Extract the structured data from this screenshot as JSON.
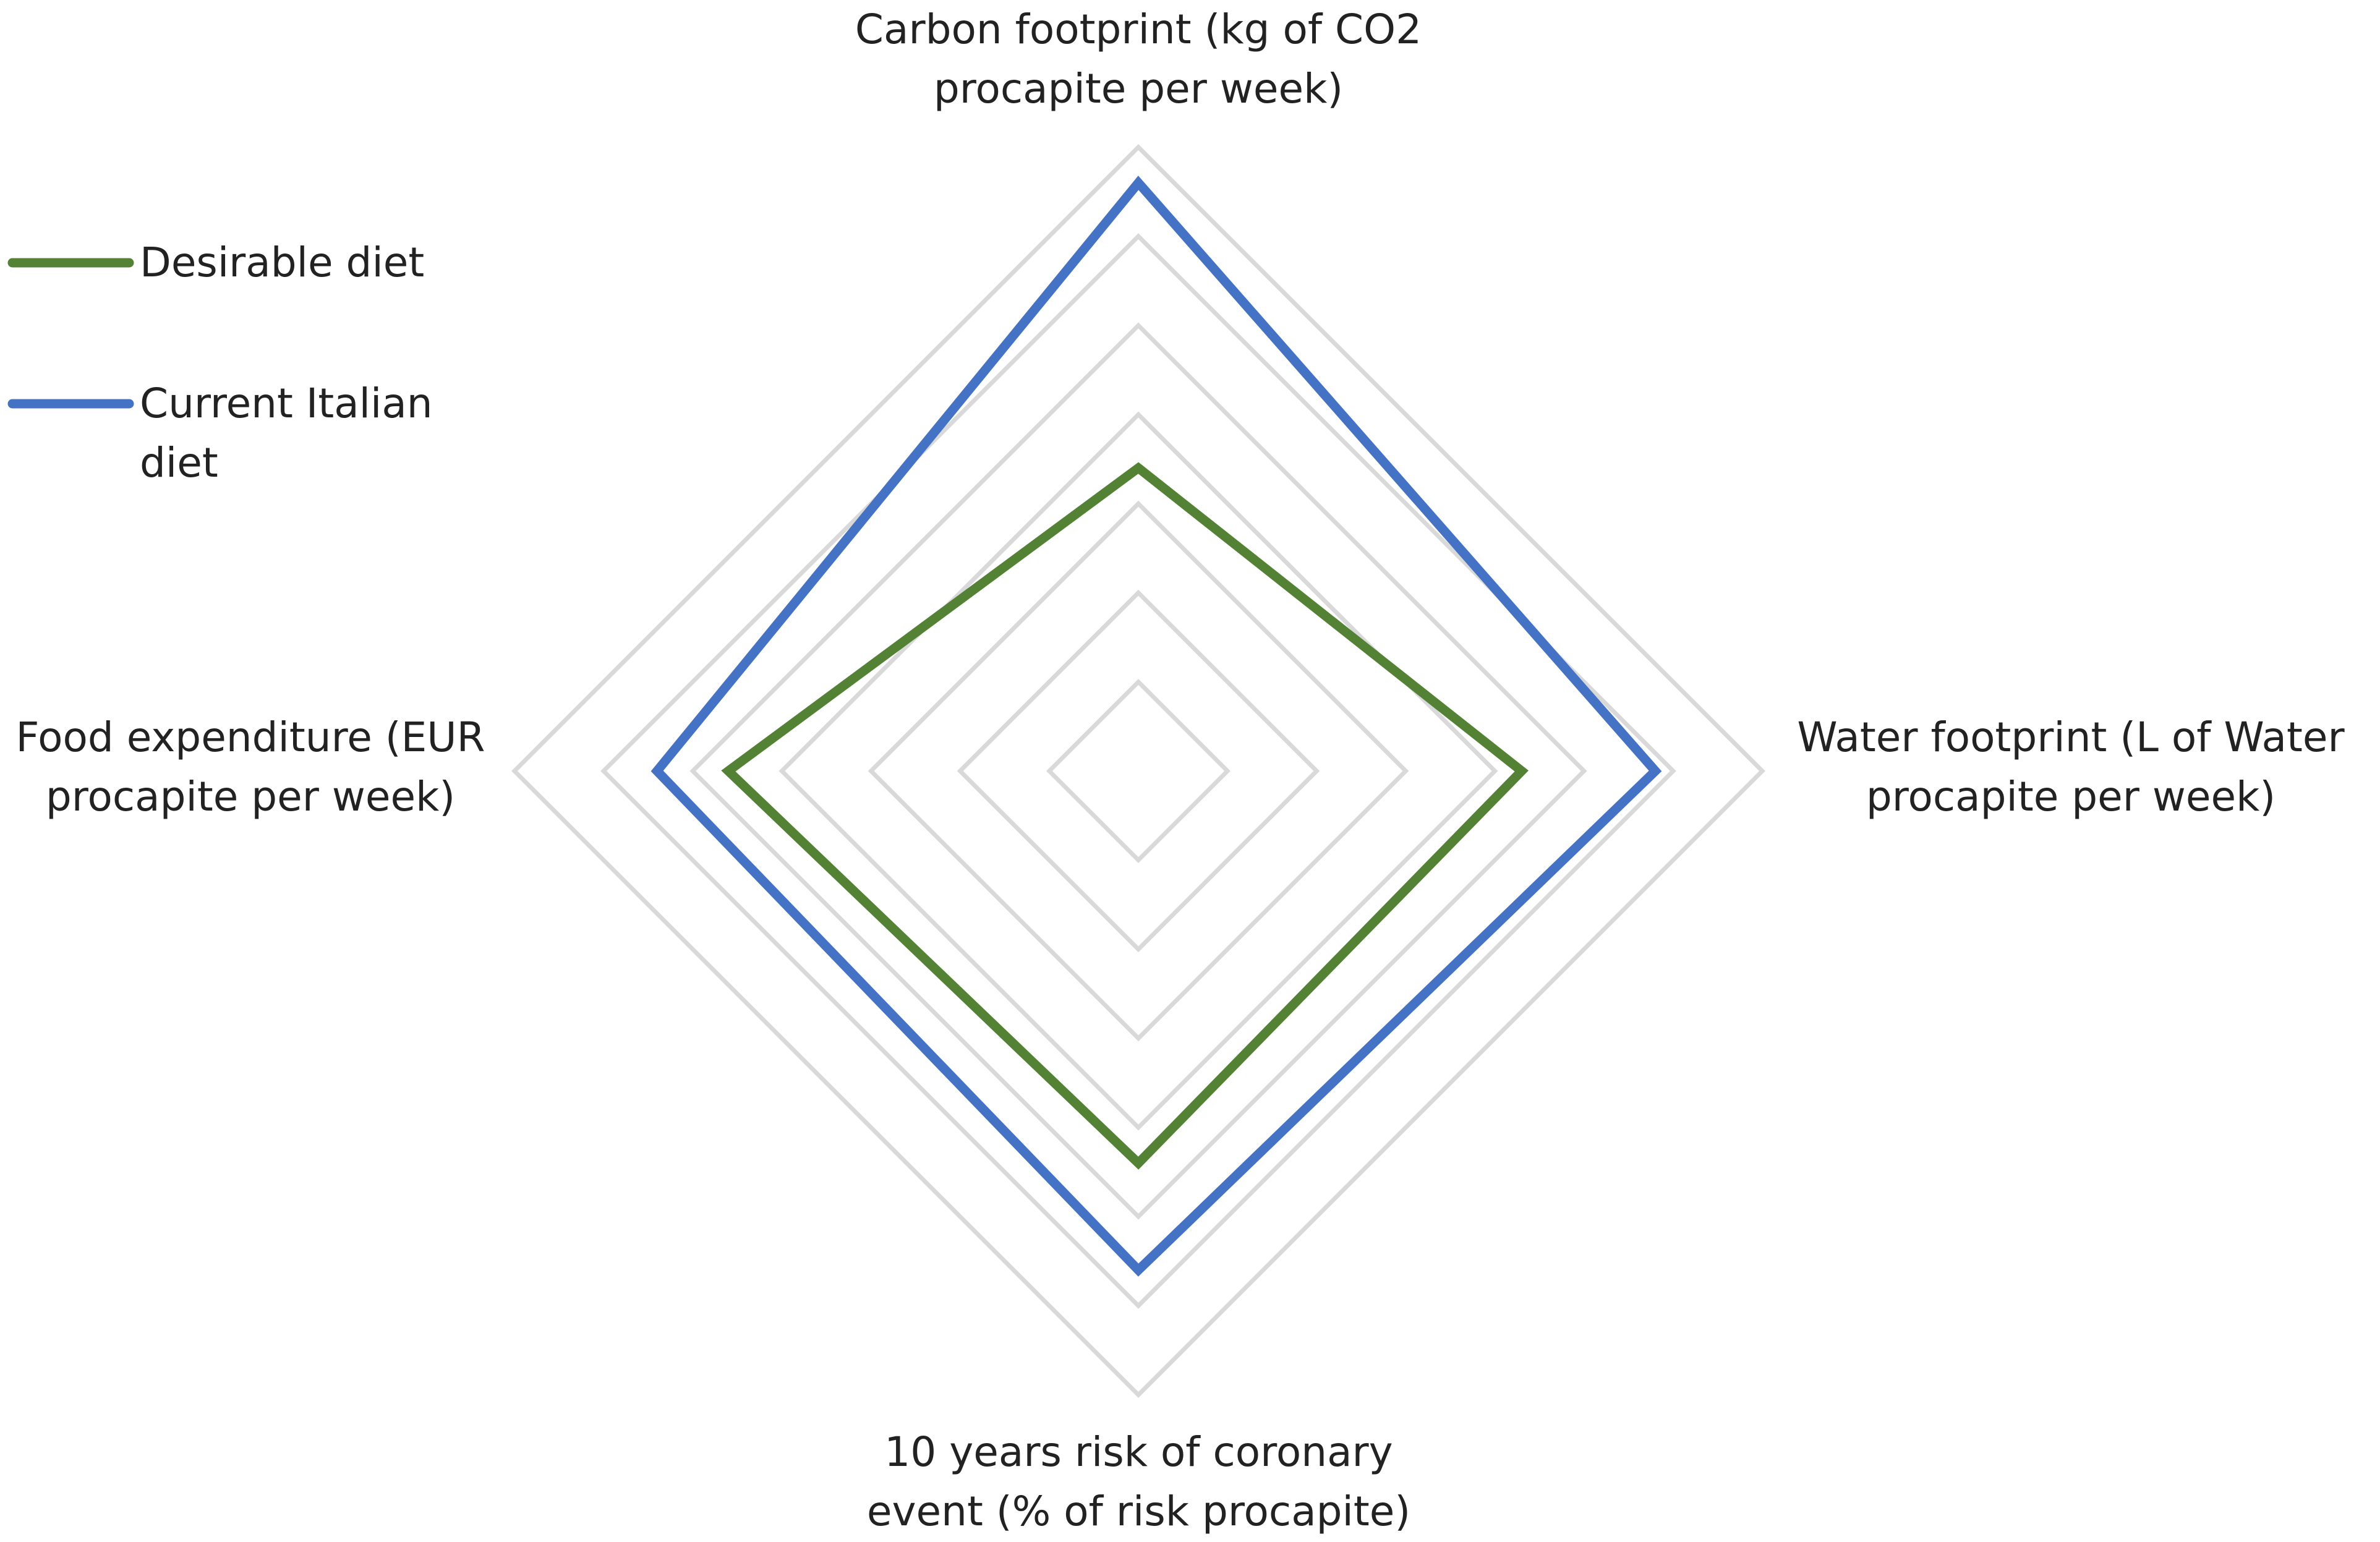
{
  "chart_data": {
    "type": "radar",
    "categories": [
      "Carbon footprint (kg of CO2 procapite per week)",
      "Water footprint (L of Water procapite per week)",
      "10 years risk of coronary event (% of risk procapite)",
      "Food expenditure (EUR procapite per week)"
    ],
    "series": [
      {
        "name": "Desirable diet",
        "color": "#548235",
        "values": [
          3.4,
          4.3,
          4.4,
          4.6
        ]
      },
      {
        "name": "Current Italian diet",
        "color": "#4472c4",
        "values": [
          6.6,
          5.8,
          5.6,
          5.4
        ]
      }
    ],
    "rlim": [
      0,
      7
    ],
    "rticks": [
      1,
      2,
      3,
      4,
      5,
      6,
      7
    ],
    "grid": true,
    "legend": "left"
  }
}
